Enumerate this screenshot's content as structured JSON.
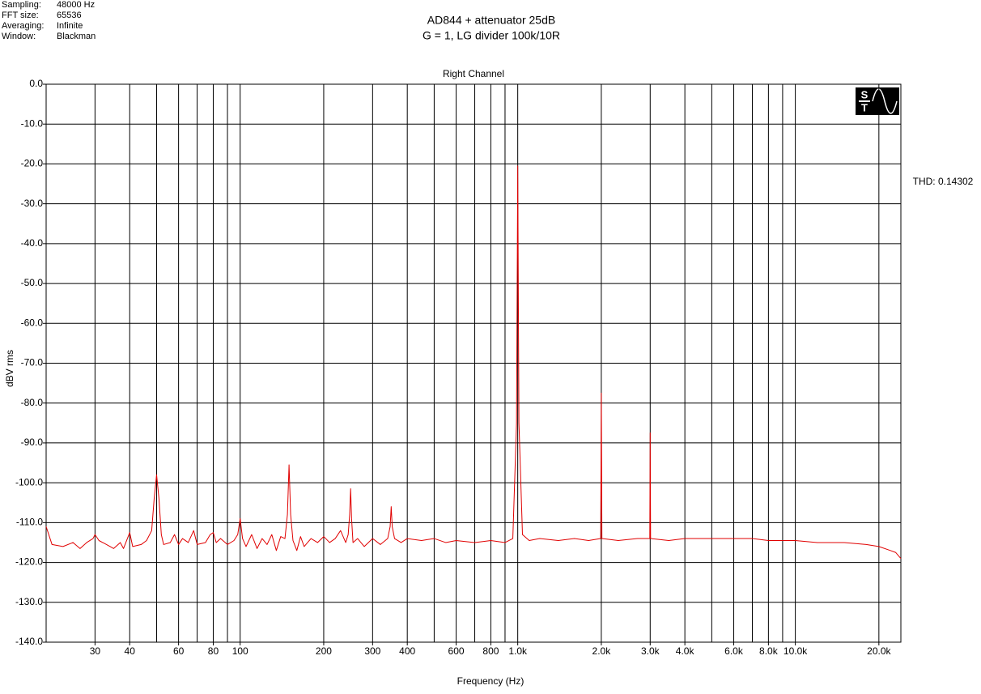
{
  "header": {
    "rows": [
      [
        "Sampling:",
        "48000 Hz"
      ],
      [
        "FFT size:",
        "65536"
      ],
      [
        "Averaging:",
        "Infinite"
      ],
      [
        "Window:",
        "Blackman"
      ]
    ]
  },
  "logo": [
    "S",
    "T"
  ],
  "chart_data": {
    "type": "line",
    "title": "AD844 + attenuator 25dB",
    "subtitle": "G = 1, LG divider 100k/10R",
    "plot_title": "Right Channel",
    "annotation": "THD: 0.14302",
    "y_label": "dBV rms",
    "x_label": "Frequency (Hz)",
    "xscale": "log",
    "grid": true,
    "xlim": [
      20,
      24000
    ],
    "ylim": [
      -140,
      0
    ],
    "xticks": [
      30,
      40,
      60,
      80,
      100,
      200,
      300,
      400,
      600,
      800,
      {
        "value": 1000,
        "label": "1.0k"
      },
      {
        "value": 2000,
        "label": "2.0k"
      },
      {
        "value": 3000,
        "label": "3.0k"
      },
      {
        "value": 4000,
        "label": "4.0k"
      },
      {
        "value": 6000,
        "label": "6.0k"
      },
      {
        "value": 8000,
        "label": "8.0k"
      },
      {
        "value": 10000,
        "label": "10.0k"
      },
      {
        "value": 20000,
        "label": "20.0k"
      }
    ],
    "xminor": [
      50,
      70,
      90,
      500,
      700,
      900,
      5000,
      7000,
      9000
    ],
    "yticks": [
      {
        "value": 0,
        "label": "0.0"
      },
      {
        "value": -10,
        "label": "-10.0"
      },
      {
        "value": -20,
        "label": "-20.0"
      },
      {
        "value": -30,
        "label": "-30.0"
      },
      {
        "value": -40,
        "label": "-40.0"
      },
      {
        "value": -50,
        "label": "-50.0"
      },
      {
        "value": -60,
        "label": "-60.0"
      },
      {
        "value": -70,
        "label": "-70.0"
      },
      {
        "value": -80,
        "label": "-80.0"
      },
      {
        "value": -90,
        "label": "-90.0"
      },
      {
        "value": -100,
        "label": "-100.0"
      },
      {
        "value": -110,
        "label": "-110.0"
      },
      {
        "value": -120,
        "label": "-120.0"
      },
      {
        "value": -130,
        "label": "-130.0"
      },
      {
        "value": -140,
        "label": "-140.0"
      }
    ],
    "x": [
      20,
      21,
      23,
      25,
      26.5,
      28,
      29.5,
      30,
      31,
      33,
      35,
      37,
      38,
      40,
      41,
      44,
      46,
      48,
      49,
      50,
      51,
      52,
      53,
      56,
      58,
      60,
      62,
      65,
      68,
      70,
      75,
      78,
      80,
      82,
      85,
      90,
      95,
      98,
      100,
      102,
      105,
      110,
      115,
      120,
      125,
      130,
      135,
      140,
      145,
      148,
      150,
      152,
      155,
      160,
      165,
      170,
      180,
      190,
      200,
      210,
      220,
      230,
      240,
      245,
      248,
      250,
      252,
      255,
      265,
      280,
      300,
      320,
      340,
      347,
      350,
      353,
      360,
      380,
      400,
      450,
      500,
      550,
      600,
      700,
      800,
      900,
      960,
      990,
      1000,
      1010,
      1040,
      1100,
      1200,
      1400,
      1600,
      1800,
      1990,
      2000,
      2010,
      2300,
      2700,
      2990,
      3000,
      3010,
      3500,
      4000,
      5000,
      6000,
      7000,
      8000,
      10000,
      12000,
      15000,
      18000,
      20000,
      22000,
      23000,
      24000
    ],
    "series": [
      {
        "color": "#e00000",
        "values": [
          -111,
          -115.5,
          -116,
          -115,
          -116.5,
          -115,
          -114,
          -113,
          -114.5,
          -115.5,
          -116.5,
          -115,
          -116.5,
          -112.5,
          -116,
          -115.5,
          -114.5,
          -112,
          -104,
          -98,
          -104,
          -113,
          -115.5,
          -115,
          -113,
          -115.5,
          -114,
          -115,
          -112,
          -115.5,
          -115,
          -113,
          -112.5,
          -115,
          -114,
          -115.5,
          -114.5,
          -113,
          -109,
          -114,
          -116,
          -113,
          -116.5,
          -114,
          -115.5,
          -113,
          -117,
          -113.5,
          -114,
          -108,
          -95.5,
          -108,
          -114.5,
          -117,
          -113.5,
          -116,
          -114,
          -115,
          -113.5,
          -115,
          -114,
          -112,
          -115,
          -113,
          -108,
          -101.5,
          -109,
          -115,
          -114,
          -116,
          -114,
          -115.5,
          -114,
          -111,
          -106,
          -111,
          -114,
          -115,
          -114,
          -114.5,
          -114,
          -115,
          -114.5,
          -115,
          -114.5,
          -115,
          -114,
          -85,
          -20.5,
          -85,
          -113,
          -114.5,
          -114,
          -114.5,
          -114,
          -114.5,
          -114,
          -77.5,
          -114,
          -114.5,
          -114,
          -114,
          -87.5,
          -114,
          -114.5,
          -114,
          -114,
          -114,
          -114,
          -114.5,
          -114.5,
          -115,
          -115,
          -115.5,
          -116,
          -117,
          -117.5,
          -119
        ]
      }
    ]
  }
}
